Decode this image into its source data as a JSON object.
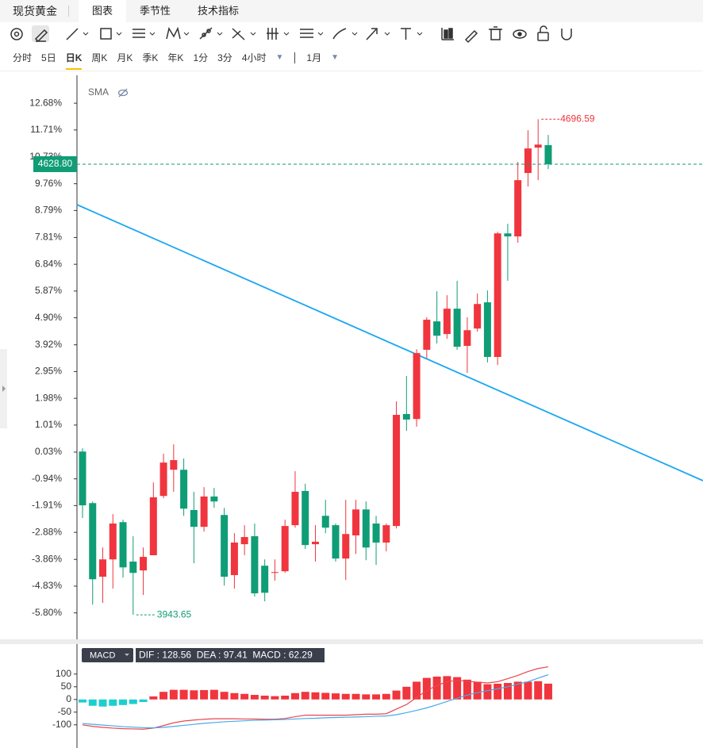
{
  "symbol": "现货黄金",
  "tabs": [
    "图表",
    "季节性",
    "技术指标"
  ],
  "periods": [
    "分时",
    "5日",
    "日K",
    "周K",
    "月K",
    "季K",
    "年K",
    "1分",
    "3分",
    "4小时"
  ],
  "range": "1月",
  "chart_data": [
    {
      "type": "candlestick",
      "indicator": "SMA",
      "up_color": "#f0353e",
      "down_color": "#0f9d76",
      "ylim": [
        -6.73,
        13.69
      ],
      "yticks": [
        {
          "value": 12.68,
          "label": "12.68%"
        },
        {
          "value": 11.71,
          "label": "11.71%"
        },
        {
          "value": 10.73,
          "label": "10.73%"
        },
        {
          "value": 9.76,
          "label": "9.76%"
        },
        {
          "value": 8.79,
          "label": "8.79%"
        },
        {
          "value": 7.81,
          "label": "7.81%"
        },
        {
          "value": 6.84,
          "label": "6.84%"
        },
        {
          "value": 5.87,
          "label": "5.87%"
        },
        {
          "value": 4.9,
          "label": "4.90%"
        },
        {
          "value": 3.92,
          "label": "3.92%"
        },
        {
          "value": 2.95,
          "label": "2.95%"
        },
        {
          "value": 1.98,
          "label": "1.98%"
        },
        {
          "value": 1.01,
          "label": "1.01%"
        },
        {
          "value": 0.03,
          "label": "0.03%"
        },
        {
          "value": -0.94,
          "label": "-0.94%"
        },
        {
          "value": -1.91,
          "label": "-1.91%"
        },
        {
          "value": -2.88,
          "label": "-2.88%"
        },
        {
          "value": -3.86,
          "label": "-3.86%"
        },
        {
          "value": -4.83,
          "label": "-4.83%"
        },
        {
          "value": -5.8,
          "label": "-5.80%"
        }
      ],
      "open": [
        0.05,
        -1.82,
        -4.49,
        -3.86,
        -2.51,
        -3.94,
        -4.26,
        -3.71,
        -1.56,
        -0.61,
        -0.61,
        -2.07,
        -2.68,
        -1.58,
        -2.25,
        -4.43,
        -3.31,
        -3.02,
        -4.09,
        -4.35,
        -4.29,
        -2.62,
        -1.38,
        -3.31,
        -2.28,
        -2.62,
        -3.83,
        -2.99,
        -2.05,
        -2.56,
        -3.25,
        -2.65,
        1.41,
        1.23,
        3.74,
        4.77,
        4.31,
        5.23,
        3.88,
        4.51,
        5.46,
        3.48,
        7.96,
        7.85,
        10.15,
        11.07,
        11.16
      ],
      "high": [
        0.17,
        -1.76,
        -3.43,
        -2.22,
        -2.42,
        -3.02,
        -3.43,
        -1.07,
        -0.03,
        0.31,
        -0.2,
        -1.41,
        -1.24,
        -1.27,
        -1.99,
        -2.91,
        -2.62,
        -2.56,
        -3.86,
        -3.86,
        -2.42,
        -0.66,
        -1.12,
        -2.62,
        -1.7,
        -2.56,
        -1.7,
        -1.7,
        -1.76,
        -2.28,
        -2.56,
        1.87,
        2.79,
        3.76,
        4.92,
        5.86,
        5.72,
        6.24,
        4.92,
        5.78,
        5.89,
        8.02,
        8.31,
        10.55,
        11.7,
        12.1,
        11.53
      ],
      "low": [
        -2.36,
        -5.5,
        -5.44,
        -4.92,
        -4.52,
        -5.87,
        -5.15,
        -3.71,
        -1.64,
        -1.41,
        -2.28,
        -4.0,
        -2.85,
        -1.99,
        -4.81,
        -4.92,
        -3.71,
        -5.21,
        -5.38,
        -4.63,
        -4.35,
        -2.71,
        -3.48,
        -3.94,
        -2.91,
        -3.94,
        -4.61,
        -3.66,
        -3.89,
        -4.06,
        -3.57,
        -2.74,
        0.8,
        0.95,
        3.42,
        3.97,
        4.14,
        3.74,
        2.9,
        4.4,
        3.28,
        3.19,
        6.24,
        7.62,
        9.66,
        9.89,
        10.29
      ],
      "close": [
        -1.9,
        -4.58,
        -3.86,
        -2.56,
        -4.15,
        -4.35,
        -3.77,
        -1.61,
        -0.35,
        -0.26,
        -2.02,
        -2.68,
        -1.58,
        -1.76,
        -4.49,
        -3.25,
        -3.05,
        -5.09,
        -5.07,
        -4.32,
        -2.65,
        -1.41,
        -3.34,
        -3.22,
        -2.71,
        -3.83,
        -2.94,
        -2.05,
        -3.43,
        -3.25,
        -2.62,
        1.38,
        1.21,
        3.62,
        4.83,
        4.25,
        5.23,
        3.85,
        4.45,
        5.4,
        3.48,
        7.96,
        7.85,
        9.89,
        11.04,
        11.18,
        10.47
      ],
      "max_label": "4696.59",
      "min_label": "3943.65",
      "last_price_label": "4628.80"
    },
    {
      "type": "macd",
      "label": "MACD",
      "readout": "DIF : 128.56  DEA : 97.41  MACD : 62.29",
      "up_color": "#f0353e",
      "down_color": "#1ccfcf",
      "dif_color": "#e8474f",
      "dea_color": "#4aa8e8",
      "ylim": [
        -160,
        190
      ],
      "yticks": [
        100,
        50,
        0,
        -50,
        -100
      ],
      "histogram": [
        -12,
        -25,
        -28,
        -25,
        -22,
        -18,
        -10,
        12,
        30,
        38,
        38,
        36,
        37,
        38,
        30,
        25,
        22,
        18,
        15,
        13,
        15,
        25,
        30,
        28,
        26,
        24,
        22,
        22,
        20,
        20,
        22,
        35,
        50,
        70,
        85,
        90,
        92,
        88,
        78,
        70,
        60,
        62,
        65,
        70,
        70,
        72,
        62.29
      ],
      "dif": [
        -100,
        -106,
        -110,
        -113,
        -115,
        -116,
        -117,
        -113,
        -103,
        -92,
        -85,
        -81,
        -78,
        -76,
        -76,
        -76,
        -77,
        -77,
        -78,
        -78,
        -75,
        -68,
        -62,
        -62,
        -62,
        -62,
        -62,
        -60,
        -58,
        -58,
        -56,
        -38,
        -20,
        8,
        35,
        55,
        70,
        75,
        72,
        68,
        65,
        70,
        82,
        95,
        110,
        122,
        128.56
      ],
      "dea": [
        -95,
        -98,
        -101,
        -104,
        -107,
        -109,
        -111,
        -112,
        -110,
        -106,
        -102,
        -98,
        -94,
        -91,
        -88,
        -86,
        -84,
        -82,
        -81,
        -80,
        -79,
        -77,
        -75,
        -74,
        -72,
        -71,
        -70,
        -69,
        -68,
        -66,
        -65,
        -60,
        -52,
        -43,
        -33,
        -21,
        -8,
        5,
        17,
        27,
        35,
        42,
        50,
        60,
        70,
        84,
        97.41
      ]
    }
  ]
}
